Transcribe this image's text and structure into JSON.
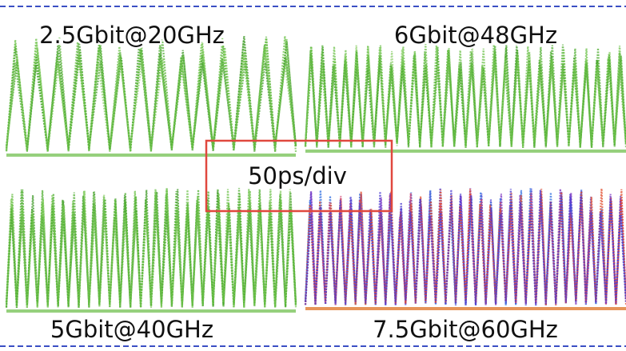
{
  "panels": [
    {
      "label": "2.5Gbit@20GHz"
    },
    {
      "label": "6Gbit@48GHz"
    },
    {
      "label": "5Gbit@40GHz"
    },
    {
      "label": "7.5Gbit@60GHz"
    }
  ],
  "scale_label": "50ps/div"
}
